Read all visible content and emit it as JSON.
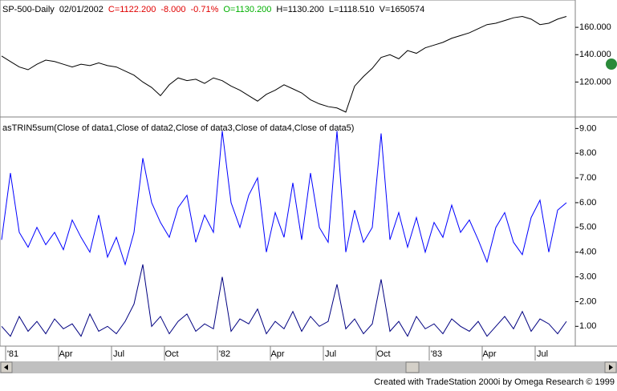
{
  "chart_data": [
    {
      "type": "line",
      "title": "SP-500-Daily",
      "header": [
        {
          "text": "02/01/2002",
          "color": "#000000"
        },
        {
          "text": "C=1122.200",
          "color": "#e00000"
        },
        {
          "text": "-8.000",
          "color": "#e00000"
        },
        {
          "text": "-0.71%",
          "color": "#e00000"
        },
        {
          "text": "O=1130.200",
          "color": "#00b000"
        },
        {
          "text": "H=1130.200",
          "color": "#000000"
        },
        {
          "text": "L=1118.510",
          "color": "#000000"
        },
        {
          "text": "V=1650574",
          "color": "#000000"
        }
      ],
      "color": "#000000",
      "values": [
        139,
        135,
        131,
        129,
        133,
        136,
        135,
        133,
        131,
        133,
        132,
        134,
        132,
        131,
        128,
        125,
        120,
        116,
        110,
        118,
        123,
        121,
        122,
        119,
        123,
        121,
        117,
        114,
        110,
        106,
        111,
        114,
        118,
        115,
        112,
        107,
        104,
        102,
        101,
        98,
        117,
        124,
        130,
        138,
        140,
        137,
        143,
        141,
        145,
        147,
        149,
        152,
        154,
        156,
        159,
        162,
        163,
        165,
        167,
        168,
        166,
        162,
        163,
        166,
        168
      ],
      "ylim": [
        95,
        180
      ],
      "yticks": [
        {
          "value": 120,
          "label": "120.000"
        },
        {
          "value": 140,
          "label": "140.000"
        },
        {
          "value": 160,
          "label": "160.000"
        }
      ]
    },
    {
      "type": "line",
      "title": "asTRIN5sum(Close of data1,Close of data2,Close of data3,Close of data4,Close of data5)",
      "categories": [
        null,
        "'81",
        null,
        null,
        null,
        null,
        null,
        "Apr",
        null,
        null,
        null,
        null,
        null,
        "Jul",
        null,
        null,
        null,
        null,
        null,
        "Oct",
        null,
        null,
        null,
        null,
        null,
        "'82",
        null,
        null,
        null,
        null,
        null,
        "Apr",
        null,
        null,
        null,
        null,
        null,
        "Jul",
        null,
        null,
        null,
        null,
        null,
        "Oct",
        null,
        null,
        null,
        null,
        null,
        "'83",
        null,
        null,
        null,
        null,
        null,
        "Apr",
        null,
        null,
        null,
        null,
        null,
        "Jul",
        null,
        null,
        null
      ],
      "series": [
        {
          "color": "#0000ff",
          "values": [
            4.5,
            7.2,
            4.8,
            4.2,
            5.0,
            4.3,
            4.8,
            4.1,
            5.3,
            4.6,
            4.0,
            5.5,
            3.8,
            4.6,
            3.5,
            4.8,
            7.8,
            6.0,
            5.2,
            4.6,
            5.8,
            6.3,
            4.4,
            5.5,
            4.8,
            8.9,
            6.0,
            5.0,
            6.3,
            7.0,
            4.0,
            5.6,
            4.6,
            6.8,
            4.5,
            7.2,
            5.0,
            4.4,
            8.9,
            4.0,
            5.7,
            4.4,
            5.0,
            8.8,
            4.5,
            5.6,
            4.2,
            5.4,
            4.0,
            5.2,
            4.6,
            5.9,
            4.8,
            5.3,
            4.5,
            3.6,
            5.0,
            5.6,
            4.4,
            3.9,
            5.4,
            6.1,
            4.0,
            5.7,
            6.0
          ]
        },
        {
          "color": "#000080",
          "values": [
            1.0,
            0.6,
            1.4,
            0.8,
            1.2,
            0.7,
            1.3,
            0.9,
            1.1,
            0.6,
            1.5,
            0.8,
            1.0,
            0.7,
            1.2,
            1.9,
            3.5,
            1.0,
            1.4,
            0.7,
            1.2,
            1.5,
            0.8,
            1.1,
            0.9,
            3.0,
            0.8,
            1.3,
            1.1,
            1.7,
            0.7,
            1.2,
            0.9,
            1.6,
            0.8,
            1.4,
            1.0,
            1.2,
            2.7,
            0.9,
            1.3,
            0.7,
            1.1,
            2.9,
            0.8,
            1.2,
            0.6,
            1.4,
            0.9,
            1.1,
            0.7,
            1.3,
            1.0,
            0.8,
            1.2,
            0.6,
            1.0,
            1.4,
            0.9,
            1.6,
            0.8,
            1.3,
            1.1,
            0.7,
            1.2
          ]
        }
      ],
      "ylim": [
        0.2,
        9.4
      ],
      "yticks": [
        {
          "value": 1,
          "label": "1.00"
        },
        {
          "value": 2,
          "label": "2.00"
        },
        {
          "value": 3,
          "label": "3.00"
        },
        {
          "value": 4,
          "label": "4.00"
        },
        {
          "value": 5,
          "label": "5.00"
        },
        {
          "value": 6,
          "label": "6.00"
        },
        {
          "value": 7,
          "label": "7.00"
        },
        {
          "value": 8,
          "label": "8.00"
        },
        {
          "value": 9,
          "label": "9.00"
        }
      ]
    }
  ],
  "footer": "Created with TradeStation 2000i by Omega Research © 1999"
}
